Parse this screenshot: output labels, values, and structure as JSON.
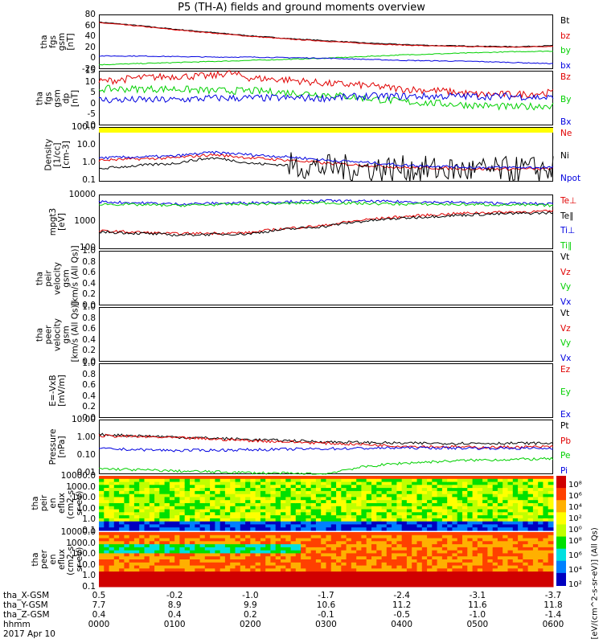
{
  "title": "P5 (TH-A) fields and ground moments overview",
  "colors": {
    "black": "#000000",
    "red": "#e00000",
    "green": "#00d000",
    "blue": "#0000e0",
    "yellow": "#ffff00"
  },
  "chart_data": [
    {
      "type": "line",
      "ylabel_lines": [
        "tha",
        "fgs",
        "gsm",
        "[nT]"
      ],
      "ylim": [
        -20,
        80
      ],
      "yticks": [
        "80",
        "60",
        "40",
        "20",
        "0",
        "-20"
      ],
      "series": [
        {
          "name": "Bt",
          "color": "#000000",
          "x": [
            0,
            0.5,
            1,
            1.5,
            2,
            2.5,
            3,
            3.5,
            4,
            4.5,
            5,
            5.5,
            6
          ],
          "y": [
            66,
            60,
            53,
            47,
            41,
            36,
            32,
            28,
            25,
            23,
            22,
            21,
            23
          ]
        },
        {
          "name": "bz",
          "color": "#e00000",
          "x": [
            0,
            0.5,
            1,
            1.5,
            2,
            2.5,
            3,
            3.5,
            4,
            4.5,
            5,
            5.5,
            6
          ],
          "y": [
            65,
            59,
            52,
            46,
            40,
            35,
            31,
            27,
            24,
            22,
            21,
            20,
            22
          ]
        },
        {
          "name": "by",
          "color": "#00d000",
          "x": [
            0,
            0.5,
            1,
            1.5,
            2,
            2.5,
            3,
            3.5,
            4,
            4.5,
            5,
            5.5,
            6
          ],
          "y": [
            -12,
            -10,
            -8,
            -6,
            -4,
            -2,
            0,
            3,
            6,
            8,
            10,
            12,
            13
          ]
        },
        {
          "name": "bx",
          "color": "#0000e0",
          "x": [
            0,
            0.5,
            1,
            1.5,
            2,
            2.5,
            3,
            3.5,
            4,
            4.5,
            5,
            5.5,
            6
          ],
          "y": [
            4,
            4,
            3,
            2,
            2,
            1,
            0,
            -2,
            -4,
            -5,
            -6,
            -8,
            -10
          ]
        }
      ]
    },
    {
      "type": "line",
      "ylabel_lines": [
        "tha",
        "fgs",
        "gsm",
        "dp",
        "[nT]"
      ],
      "ylim": [
        -15,
        15
      ],
      "yticks": [
        "15",
        "10",
        "5",
        "0",
        "-5",
        "-10"
      ],
      "series": [
        {
          "name": "Bz",
          "color": "#e00000",
          "x": [
            0,
            0.5,
            1,
            1.5,
            1.7,
            2,
            2.5,
            3,
            3.5,
            4,
            4.5,
            5,
            5.5,
            6
          ],
          "y": [
            9,
            11,
            12,
            12,
            14,
            11,
            10,
            8,
            7,
            5,
            4,
            2,
            2,
            3
          ]
        },
        {
          "name": "By",
          "color": "#00d000",
          "x": [
            0,
            0.5,
            1,
            1.5,
            2,
            2.5,
            3,
            3.5,
            4,
            4.5,
            5,
            5.5,
            6
          ],
          "y": [
            5,
            5,
            5,
            4,
            4,
            3,
            2,
            0,
            -2,
            -3,
            -4,
            -5,
            -4
          ]
        },
        {
          "name": "Bx",
          "color": "#0000e0",
          "x": [
            0,
            0.5,
            1,
            1.5,
            2,
            2.5,
            3,
            3.5,
            4,
            4.5,
            5,
            5.5,
            6
          ],
          "y": [
            -1,
            -1,
            -1,
            0,
            0,
            0,
            0,
            1,
            1,
            1,
            1,
            1,
            0
          ]
        }
      ]
    },
    {
      "type": "line",
      "ylabel_lines": [
        "Density",
        "[1/cc]",
        "[cm-3]"
      ],
      "ylim": [
        0.1,
        100
      ],
      "log": true,
      "yticks": [
        "100.0",
        "10.0",
        "1.0",
        "0.1"
      ],
      "series": [
        {
          "name": "Ne",
          "color": "#e00000",
          "x": [
            0,
            1,
            1.5,
            2,
            3,
            4,
            5,
            6
          ],
          "y": [
            1.5,
            2,
            3,
            2,
            1,
            0.6,
            0.5,
            0.5
          ]
        },
        {
          "name": "Ni",
          "color": "#000000",
          "x": [
            0,
            1,
            1.5,
            2,
            3,
            4,
            5,
            6
          ],
          "y": [
            0.5,
            1,
            2,
            1,
            0.6,
            0.5,
            0.4,
            0.5
          ]
        },
        {
          "name": "Npot",
          "color": "#0000e0",
          "x": [
            0,
            1,
            1.5,
            2,
            3,
            4,
            5,
            6
          ],
          "y": [
            2,
            2.5,
            4,
            3,
            1.5,
            0.8,
            0.6,
            0.6
          ]
        }
      ]
    },
    {
      "type": "line",
      "ylabel_lines": [
        "mpgt3",
        "[eV]"
      ],
      "ylim": [
        10,
        10000
      ],
      "log": true,
      "yticks": [
        "10000",
        "1000",
        "100"
      ],
      "series": [
        {
          "name": "Te⊥",
          "color": "#e00000",
          "x": [
            0,
            1,
            2,
            3,
            4,
            5,
            6
          ],
          "y": [
            100,
            70,
            80,
            200,
            600,
            1000,
            1200
          ]
        },
        {
          "name": "Te∥",
          "color": "#000000",
          "x": [
            0,
            1,
            2,
            3,
            4,
            5,
            6
          ],
          "y": [
            90,
            60,
            70,
            180,
            500,
            800,
            1000
          ]
        },
        {
          "name": "Ti⊥",
          "color": "#0000e0",
          "x": [
            0,
            1,
            2,
            3,
            4,
            5,
            6
          ],
          "y": [
            4000,
            3000,
            3500,
            4500,
            4000,
            3500,
            3000
          ]
        },
        {
          "name": "Ti∥",
          "color": "#00d000",
          "x": [
            0,
            1,
            2,
            3,
            4,
            5,
            6
          ],
          "y": [
            3000,
            2500,
            3000,
            3500,
            3000,
            2800,
            2500
          ]
        }
      ]
    },
    {
      "type": "line",
      "ylabel_lines": [
        "tha",
        "peir",
        "velocity",
        "gsm",
        "[km/s (All Qs)]"
      ],
      "ylim": [
        0,
        1
      ],
      "yticks": [
        "1.0",
        "0.8",
        "0.6",
        "0.4",
        "0.2",
        "0.0"
      ],
      "series": [
        {
          "name": "Vt",
          "color": "#000000"
        },
        {
          "name": "Vz",
          "color": "#e00000"
        },
        {
          "name": "Vy",
          "color": "#00d000"
        },
        {
          "name": "Vx",
          "color": "#0000e0"
        }
      ]
    },
    {
      "type": "line",
      "ylabel_lines": [
        "tha",
        "peer",
        "velocity",
        "gsm",
        "[km/s (All Qs)]"
      ],
      "ylim": [
        0,
        1
      ],
      "yticks": [
        "1.0",
        "0.8",
        "0.6",
        "0.4",
        "0.2",
        "0.0"
      ],
      "series": [
        {
          "name": "Vt",
          "color": "#000000"
        },
        {
          "name": "Vz",
          "color": "#e00000"
        },
        {
          "name": "Vy",
          "color": "#00d000"
        },
        {
          "name": "Vx",
          "color": "#0000e0"
        }
      ]
    },
    {
      "type": "line",
      "ylabel_lines": [
        "E=-VxB",
        "[mV/m]"
      ],
      "ylim": [
        0,
        1
      ],
      "yticks": [
        "1.0",
        "0.8",
        "0.6",
        "0.4",
        "0.2",
        "0.0"
      ],
      "series": [
        {
          "name": "Ez",
          "color": "#e00000"
        },
        {
          "name": "Ey",
          "color": "#00d000"
        },
        {
          "name": "Ex",
          "color": "#0000e0"
        }
      ]
    },
    {
      "type": "line",
      "ylabel_lines": [
        "Pressure",
        "[nPa]"
      ],
      "ylim": [
        0.01,
        10
      ],
      "log": true,
      "yticks": [
        "10.00",
        "1.00",
        "0.10",
        "0.01"
      ],
      "series": [
        {
          "name": "Pt",
          "color": "#000000",
          "x": [
            0,
            1,
            2,
            3,
            4,
            5,
            6
          ],
          "y": [
            1.5,
            1.1,
            0.8,
            0.6,
            0.5,
            0.5,
            0.5
          ]
        },
        {
          "name": "Pb",
          "color": "#e00000",
          "x": [
            0,
            1,
            2,
            3,
            4,
            5,
            6
          ],
          "y": [
            1.3,
            1.0,
            0.7,
            0.5,
            0.35,
            0.3,
            0.32
          ]
        },
        {
          "name": "Pe",
          "color": "#00d000",
          "x": [
            0,
            1,
            2,
            3,
            4,
            5,
            6
          ],
          "y": [
            0.02,
            0.015,
            0.012,
            0.01,
            0.04,
            0.06,
            0.07
          ]
        },
        {
          "name": "Pi",
          "color": "#0000e0",
          "x": [
            0,
            1,
            2,
            3,
            4,
            5,
            6
          ],
          "y": [
            0.25,
            0.2,
            0.22,
            0.25,
            0.28,
            0.27,
            0.26
          ]
        }
      ]
    },
    {
      "type": "heatmap",
      "ylabel_lines": [
        "tha",
        "peir",
        "en",
        "eflux",
        "(cm2-s-",
        "sr-eV)"
      ],
      "yticks": [
        "10000.0",
        "1000.0",
        "100.0",
        "10.0",
        "1.0",
        "0.1"
      ]
    },
    {
      "type": "heatmap",
      "ylabel_lines": [
        "tha",
        "peer",
        "en",
        "eflux",
        "(cm2-s-",
        "sr-eV)"
      ],
      "yticks": [
        "10000.0",
        "1000.0",
        "100.0",
        "10.0",
        "1.0",
        "0.1"
      ]
    }
  ],
  "colorbar": {
    "label": "[eV/(cm^2-s-sr-eV)] (All Qs)",
    "ticks_top": [
      "10⁸",
      "10⁶",
      "10⁴",
      "10²",
      "10⁰"
    ],
    "ticks_bottom": [
      "10⁸",
      "10⁶",
      "10⁴",
      "10²"
    ]
  },
  "footer": {
    "rows": [
      {
        "label": "tha_X-GSM",
        "values": [
          "0.5",
          "-0.2",
          "-1.0",
          "-1.7",
          "-2.4",
          "-3.1",
          "-3.7"
        ]
      },
      {
        "label": "tha_Y-GSM",
        "values": [
          "7.7",
          "8.9",
          "9.9",
          "10.6",
          "11.2",
          "11.6",
          "11.8"
        ]
      },
      {
        "label": "tha_Z-GSM",
        "values": [
          "0.4",
          "0.4",
          "0.2",
          "-0.1",
          "-0.5",
          "-1.0",
          "-1.4"
        ]
      },
      {
        "label": "hhmm",
        "values": [
          "0000",
          "0100",
          "0200",
          "0300",
          "0400",
          "0500",
          "0600"
        ]
      }
    ],
    "date": "2017 Apr 10"
  }
}
